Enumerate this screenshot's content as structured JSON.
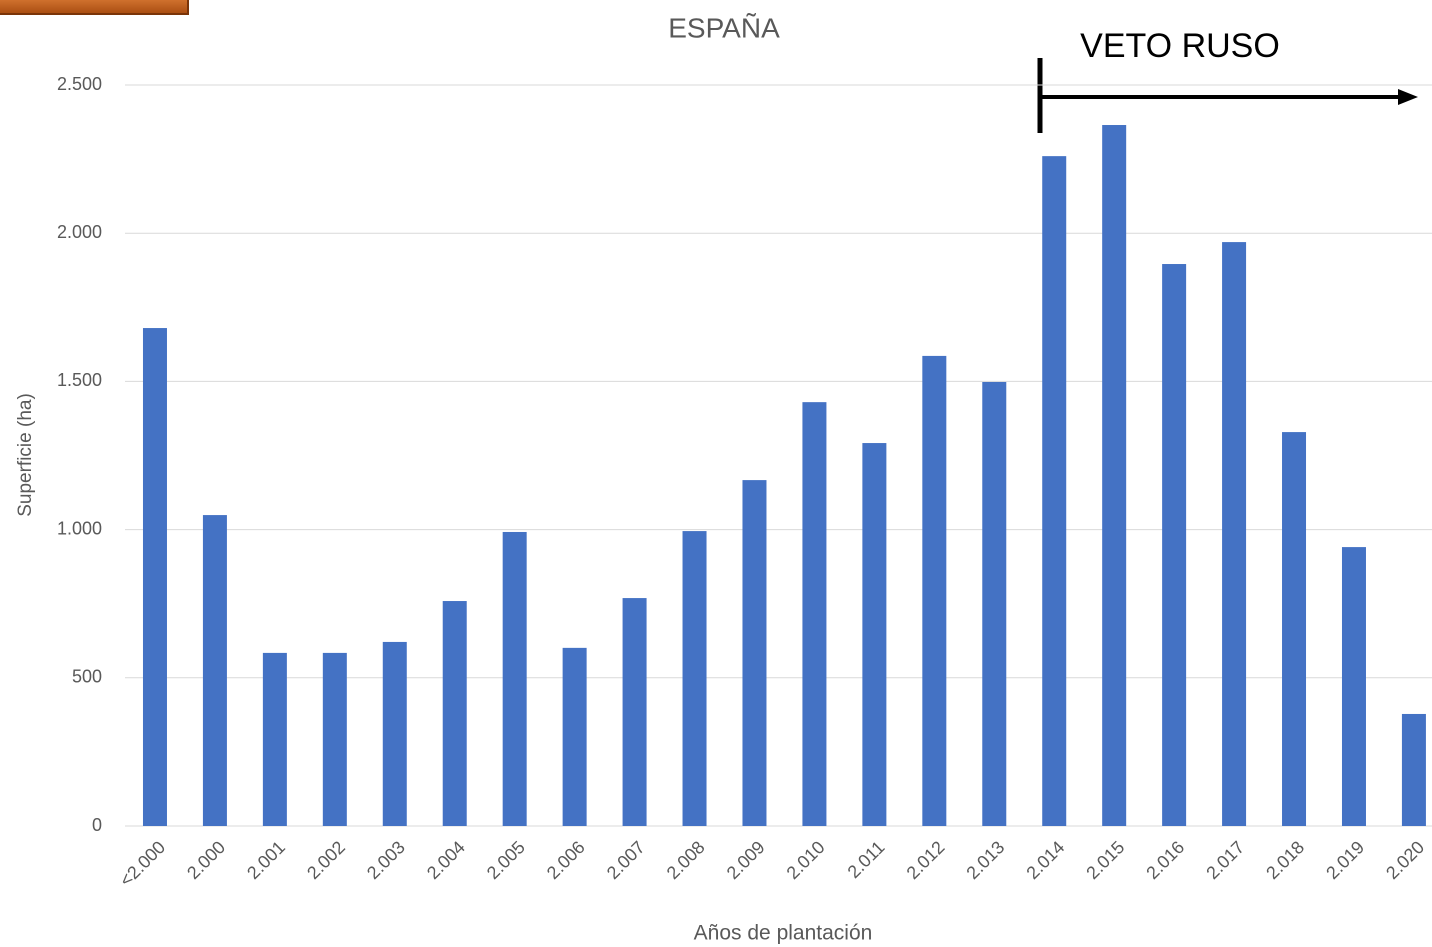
{
  "chart_data": {
    "type": "bar",
    "title": "ESPAÑA",
    "annotation": "VETO RUSO",
    "x_label": "Años de plantación",
    "y_label": "Superficie (ha)",
    "categories": [
      "<2.000",
      "2.000",
      "2.001",
      "2.002",
      "2.003",
      "2.004",
      "2.005",
      "2.006",
      "2.007",
      "2.008",
      "2.009",
      "2.010",
      "2.011",
      "2.012",
      "2.013",
      "2.014",
      "2.015",
      "2.016",
      "2.017",
      "2.018",
      "2.019",
      "2.020"
    ],
    "values": [
      1680,
      1049,
      584,
      584,
      621,
      759,
      992,
      601,
      769,
      995,
      1167,
      1430,
      1292,
      1586,
      1498,
      2260,
      2365,
      1896,
      1970,
      1329,
      941,
      378
    ],
    "color": "#4472c4",
    "ylim": [
      0,
      2500
    ],
    "yticks": [
      0,
      500,
      {
        "value": 1000,
        "label": "1.000"
      },
      {
        "value": 1500,
        "label": "1.500"
      },
      {
        "value": 2000,
        "label": "2.000"
      },
      {
        "value": 2500,
        "label": "2.500"
      }
    ],
    "grid": true
  }
}
